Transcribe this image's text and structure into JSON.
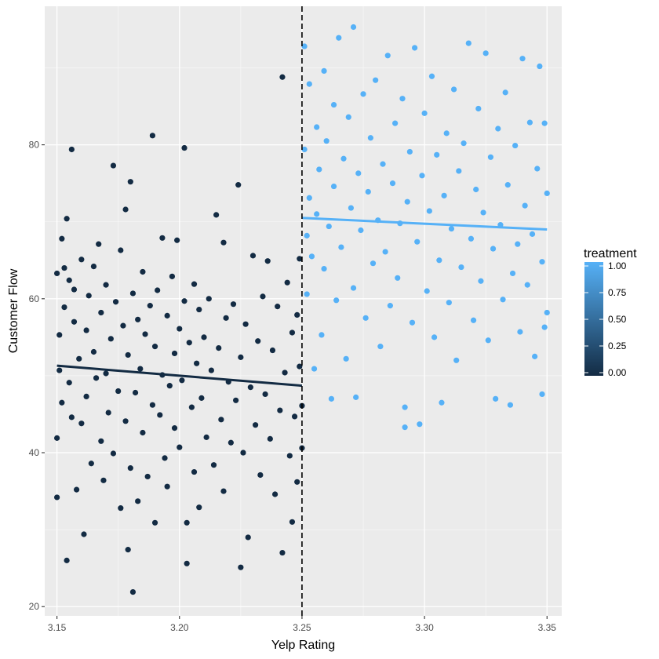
{
  "chart_data": {
    "type": "scatter",
    "xlabel": "Yelp Rating",
    "ylabel": "Customer Flow",
    "xlim": [
      3.145,
      3.356
    ],
    "ylim": [
      18.8,
      98.0
    ],
    "x_ticks": [
      3.15,
      3.2,
      3.25,
      3.3,
      3.35
    ],
    "x_tick_labels": [
      "3.15",
      "3.20",
      "3.25",
      "3.30",
      "3.35"
    ],
    "y_ticks": [
      20,
      40,
      60,
      80
    ],
    "y_tick_labels": [
      "20",
      "40",
      "60",
      "80"
    ],
    "grid": true,
    "cutoff": 3.25,
    "cutoff_line_style": "dashed",
    "legend": {
      "title": "treatment",
      "type": "colorbar",
      "placement": "right",
      "labels": [
        "1.00",
        "0.75",
        "0.50",
        "0.25",
        "0.00"
      ],
      "values": [
        1.0,
        0.75,
        0.5,
        0.25,
        0.0
      ],
      "low_color": "#132B43",
      "high_color": "#56B1F7"
    },
    "series": [
      {
        "treatment": 0,
        "color": "#132B43",
        "points": [
          [
            3.15,
            63.3
          ],
          [
            3.15,
            34.2
          ],
          [
            3.15,
            41.9
          ],
          [
            3.151,
            55.3
          ],
          [
            3.151,
            50.7
          ],
          [
            3.152,
            67.8
          ],
          [
            3.152,
            46.5
          ],
          [
            3.153,
            64.0
          ],
          [
            3.153,
            58.9
          ],
          [
            3.154,
            70.4
          ],
          [
            3.154,
            26.0
          ],
          [
            3.155,
            62.4
          ],
          [
            3.155,
            49.1
          ],
          [
            3.156,
            79.4
          ],
          [
            3.156,
            44.6
          ],
          [
            3.157,
            61.2
          ],
          [
            3.157,
            57.0
          ],
          [
            3.158,
            35.2
          ],
          [
            3.159,
            52.2
          ],
          [
            3.16,
            65.1
          ],
          [
            3.16,
            43.8
          ],
          [
            3.161,
            29.4
          ],
          [
            3.162,
            55.9
          ],
          [
            3.162,
            47.3
          ],
          [
            3.163,
            60.4
          ],
          [
            3.164,
            38.6
          ],
          [
            3.165,
            64.2
          ],
          [
            3.165,
            53.1
          ],
          [
            3.166,
            49.7
          ],
          [
            3.167,
            67.1
          ],
          [
            3.168,
            41.5
          ],
          [
            3.168,
            58.2
          ],
          [
            3.169,
            36.4
          ],
          [
            3.17,
            61.8
          ],
          [
            3.17,
            50.3
          ],
          [
            3.171,
            45.2
          ],
          [
            3.172,
            54.8
          ],
          [
            3.173,
            77.3
          ],
          [
            3.173,
            39.9
          ],
          [
            3.174,
            59.6
          ],
          [
            3.175,
            48.0
          ],
          [
            3.176,
            66.3
          ],
          [
            3.176,
            32.8
          ],
          [
            3.177,
            56.5
          ],
          [
            3.178,
            71.6
          ],
          [
            3.178,
            44.1
          ],
          [
            3.179,
            27.4
          ],
          [
            3.179,
            52.7
          ],
          [
            3.18,
            75.2
          ],
          [
            3.18,
            38.0
          ],
          [
            3.181,
            21.9
          ],
          [
            3.181,
            60.7
          ],
          [
            3.182,
            47.8
          ],
          [
            3.183,
            57.3
          ],
          [
            3.183,
            33.7
          ],
          [
            3.184,
            50.9
          ],
          [
            3.185,
            63.5
          ],
          [
            3.185,
            42.6
          ],
          [
            3.186,
            55.4
          ],
          [
            3.187,
            36.9
          ],
          [
            3.188,
            59.1
          ],
          [
            3.189,
            81.2
          ],
          [
            3.189,
            46.2
          ],
          [
            3.19,
            53.8
          ],
          [
            3.19,
            30.9
          ],
          [
            3.191,
            61.1
          ],
          [
            3.192,
            44.9
          ],
          [
            3.193,
            67.9
          ],
          [
            3.193,
            50.1
          ],
          [
            3.194,
            39.3
          ],
          [
            3.195,
            57.8
          ],
          [
            3.195,
            35.6
          ],
          [
            3.196,
            48.7
          ],
          [
            3.197,
            62.9
          ],
          [
            3.198,
            52.9
          ],
          [
            3.198,
            43.2
          ],
          [
            3.199,
            67.6
          ],
          [
            3.2,
            56.1
          ],
          [
            3.2,
            40.7
          ],
          [
            3.201,
            49.4
          ],
          [
            3.202,
            79.6
          ],
          [
            3.202,
            59.7
          ],
          [
            3.203,
            30.9
          ],
          [
            3.203,
            25.6
          ],
          [
            3.204,
            54.3
          ],
          [
            3.205,
            45.9
          ],
          [
            3.206,
            61.9
          ],
          [
            3.206,
            37.5
          ],
          [
            3.207,
            51.6
          ],
          [
            3.208,
            58.6
          ],
          [
            3.208,
            32.9
          ],
          [
            3.209,
            47.1
          ],
          [
            3.21,
            55.0
          ],
          [
            3.211,
            42.0
          ],
          [
            3.212,
            60.0
          ],
          [
            3.213,
            50.7
          ],
          [
            3.214,
            38.4
          ],
          [
            3.215,
            70.9
          ],
          [
            3.216,
            53.6
          ],
          [
            3.217,
            44.3
          ],
          [
            3.218,
            67.3
          ],
          [
            3.218,
            35.0
          ],
          [
            3.219,
            57.5
          ],
          [
            3.22,
            49.2
          ],
          [
            3.221,
            41.3
          ],
          [
            3.222,
            59.3
          ],
          [
            3.223,
            46.8
          ],
          [
            3.224,
            74.8
          ],
          [
            3.225,
            25.1
          ],
          [
            3.225,
            52.4
          ],
          [
            3.226,
            40.0
          ],
          [
            3.227,
            56.7
          ],
          [
            3.228,
            29.0
          ],
          [
            3.229,
            48.5
          ],
          [
            3.23,
            65.6
          ],
          [
            3.231,
            43.6
          ],
          [
            3.232,
            54.5
          ],
          [
            3.233,
            37.1
          ],
          [
            3.234,
            60.3
          ],
          [
            3.235,
            47.6
          ],
          [
            3.236,
            64.9
          ],
          [
            3.237,
            41.8
          ],
          [
            3.238,
            53.3
          ],
          [
            3.239,
            34.6
          ],
          [
            3.24,
            59.0
          ],
          [
            3.241,
            45.5
          ],
          [
            3.242,
            27.0
          ],
          [
            3.242,
            88.8
          ],
          [
            3.243,
            50.4
          ],
          [
            3.244,
            62.1
          ],
          [
            3.245,
            39.6
          ],
          [
            3.246,
            55.6
          ],
          [
            3.246,
            31.0
          ],
          [
            3.247,
            44.7
          ],
          [
            3.248,
            57.9
          ],
          [
            3.248,
            36.2
          ],
          [
            3.249,
            65.2
          ],
          [
            3.249,
            51.2
          ],
          [
            3.25,
            40.6
          ],
          [
            3.25,
            46.1
          ]
        ]
      },
      {
        "treatment": 1,
        "color": "#56B1F7",
        "points": [
          [
            3.251,
            92.8
          ],
          [
            3.251,
            79.4
          ],
          [
            3.252,
            68.2
          ],
          [
            3.252,
            60.6
          ],
          [
            3.253,
            87.9
          ],
          [
            3.253,
            73.1
          ],
          [
            3.254,
            65.5
          ],
          [
            3.255,
            50.9
          ],
          [
            3.256,
            82.3
          ],
          [
            3.256,
            71.0
          ],
          [
            3.257,
            76.8
          ],
          [
            3.258,
            55.3
          ],
          [
            3.259,
            89.6
          ],
          [
            3.259,
            63.9
          ],
          [
            3.26,
            80.5
          ],
          [
            3.261,
            69.4
          ],
          [
            3.262,
            47.0
          ],
          [
            3.263,
            85.2
          ],
          [
            3.263,
            74.6
          ],
          [
            3.264,
            59.8
          ],
          [
            3.265,
            93.9
          ],
          [
            3.266,
            66.7
          ],
          [
            3.267,
            78.2
          ],
          [
            3.268,
            52.2
          ],
          [
            3.269,
            83.6
          ],
          [
            3.27,
            71.8
          ],
          [
            3.271,
            95.3
          ],
          [
            3.271,
            61.4
          ],
          [
            3.272,
            47.2
          ],
          [
            3.273,
            76.3
          ],
          [
            3.274,
            68.9
          ],
          [
            3.275,
            86.6
          ],
          [
            3.276,
            57.5
          ],
          [
            3.277,
            73.9
          ],
          [
            3.278,
            80.9
          ],
          [
            3.279,
            64.6
          ],
          [
            3.28,
            88.4
          ],
          [
            3.281,
            70.2
          ],
          [
            3.282,
            53.8
          ],
          [
            3.283,
            77.5
          ],
          [
            3.284,
            66.1
          ],
          [
            3.285,
            91.6
          ],
          [
            3.286,
            59.1
          ],
          [
            3.287,
            75.0
          ],
          [
            3.288,
            82.8
          ],
          [
            3.289,
            62.7
          ],
          [
            3.29,
            69.8
          ],
          [
            3.291,
            86.0
          ],
          [
            3.292,
            45.9
          ],
          [
            3.292,
            43.3
          ],
          [
            3.293,
            72.6
          ],
          [
            3.294,
            79.1
          ],
          [
            3.295,
            56.9
          ],
          [
            3.296,
            92.6
          ],
          [
            3.297,
            67.4
          ],
          [
            3.298,
            43.7
          ],
          [
            3.299,
            76.0
          ],
          [
            3.3,
            84.1
          ],
          [
            3.301,
            61.0
          ],
          [
            3.302,
            71.4
          ],
          [
            3.303,
            88.9
          ],
          [
            3.304,
            55.0
          ],
          [
            3.305,
            78.7
          ],
          [
            3.306,
            65.0
          ],
          [
            3.307,
            46.5
          ],
          [
            3.308,
            73.4
          ],
          [
            3.309,
            81.5
          ],
          [
            3.31,
            59.5
          ],
          [
            3.311,
            69.1
          ],
          [
            3.312,
            87.2
          ],
          [
            3.313,
            52.0
          ],
          [
            3.314,
            76.6
          ],
          [
            3.315,
            64.1
          ],
          [
            3.316,
            80.2
          ],
          [
            3.318,
            93.2
          ],
          [
            3.319,
            67.8
          ],
          [
            3.32,
            57.2
          ],
          [
            3.321,
            74.2
          ],
          [
            3.322,
            84.7
          ],
          [
            3.323,
            62.3
          ],
          [
            3.324,
            71.2
          ],
          [
            3.325,
            91.9
          ],
          [
            3.326,
            54.6
          ],
          [
            3.327,
            78.4
          ],
          [
            3.328,
            66.5
          ],
          [
            3.329,
            47.0
          ],
          [
            3.33,
            82.1
          ],
          [
            3.331,
            69.6
          ],
          [
            3.332,
            59.9
          ],
          [
            3.333,
            86.8
          ],
          [
            3.334,
            74.8
          ],
          [
            3.335,
            46.2
          ],
          [
            3.336,
            63.3
          ],
          [
            3.337,
            79.9
          ],
          [
            3.338,
            67.1
          ],
          [
            3.339,
            55.7
          ],
          [
            3.34,
            91.2
          ],
          [
            3.341,
            72.1
          ],
          [
            3.342,
            61.8
          ],
          [
            3.343,
            82.9
          ],
          [
            3.344,
            68.4
          ],
          [
            3.345,
            52.5
          ],
          [
            3.346,
            76.9
          ],
          [
            3.347,
            90.2
          ],
          [
            3.348,
            64.8
          ],
          [
            3.349,
            56.3
          ],
          [
            3.35,
            73.7
          ],
          [
            3.35,
            58.2
          ],
          [
            3.349,
            82.8
          ],
          [
            3.348,
            47.6
          ]
        ]
      }
    ],
    "fits": [
      {
        "treatment": 0,
        "color": "#132B43",
        "x": [
          3.15,
          3.25
        ],
        "y": [
          51.3,
          48.7
        ]
      },
      {
        "treatment": 1,
        "color": "#56B1F7",
        "x": [
          3.25,
          3.35
        ],
        "y": [
          70.5,
          69.0
        ]
      }
    ]
  }
}
